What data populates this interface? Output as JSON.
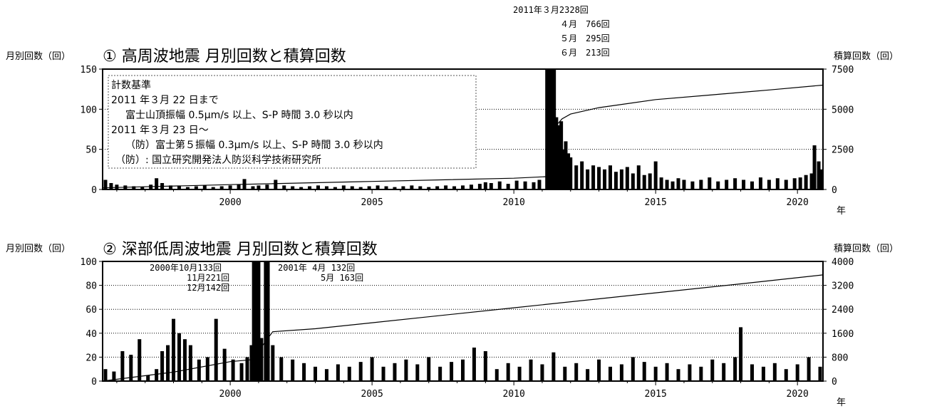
{
  "chart_data": [
    {
      "type": "bar",
      "title": "① 高周波地震 月別回数と積算回数",
      "ylabel_left": "月別回数（回）",
      "ylabel_right": "積算回数（回）",
      "xlabel": "年",
      "ylim": [
        0,
        150
      ],
      "ylim_right": [
        0,
        7500
      ],
      "yticks": [
        "0",
        "50",
        "100",
        "150"
      ],
      "yticks_right": [
        "0",
        "2500",
        "5000",
        "7500"
      ],
      "xticks": [
        "2000",
        "2005",
        "2010",
        "2015",
        "2020"
      ],
      "xrange": [
        1995.5,
        2020.9
      ],
      "grid": "horizontal dotted",
      "series": [
        {
          "kind": "monthly_bars",
          "x": [
            1995.6,
            1995.8,
            1996.0,
            1996.3,
            1996.6,
            1996.9,
            1997.2,
            1997.4,
            1997.6,
            1997.9,
            1998.2,
            1998.5,
            1998.8,
            1999.1,
            1999.4,
            1999.7,
            2000.0,
            2000.3,
            2000.5,
            2000.8,
            2001.0,
            2001.3,
            2001.6,
            2001.9,
            2002.2,
            2002.5,
            2002.8,
            2003.1,
            2003.4,
            2003.7,
            2004.0,
            2004.3,
            2004.6,
            2004.9,
            2005.2,
            2005.5,
            2005.8,
            2006.1,
            2006.4,
            2006.7,
            2007.0,
            2007.3,
            2007.6,
            2007.9,
            2008.2,
            2008.5,
            2008.8,
            2009.0,
            2009.2,
            2009.5,
            2009.8,
            2010.1,
            2010.4,
            2010.7,
            2010.9,
            2011.17,
            2011.25,
            2011.33,
            2011.42,
            2011.5,
            2011.58,
            2011.67,
            2011.75,
            2011.83,
            2011.92,
            2012.0,
            2012.2,
            2012.4,
            2012.6,
            2012.8,
            2013.0,
            2013.2,
            2013.4,
            2013.6,
            2013.8,
            2014.0,
            2014.2,
            2014.4,
            2014.6,
            2014.8,
            2015.0,
            2015.2,
            2015.4,
            2015.6,
            2015.8,
            2016.0,
            2016.3,
            2016.6,
            2016.9,
            2017.2,
            2017.5,
            2017.8,
            2018.1,
            2018.4,
            2018.7,
            2019.0,
            2019.3,
            2019.6,
            2019.9,
            2020.1,
            2020.3,
            2020.5,
            2020.6,
            2020.75,
            2020.85
          ],
          "values": [
            12,
            8,
            6,
            5,
            4,
            3,
            6,
            14,
            8,
            5,
            4,
            3,
            4,
            5,
            3,
            4,
            5,
            6,
            13,
            4,
            5,
            6,
            12,
            5,
            4,
            3,
            4,
            5,
            4,
            3,
            5,
            4,
            3,
            4,
            5,
            4,
            3,
            4,
            5,
            4,
            3,
            4,
            5,
            4,
            5,
            6,
            7,
            9,
            8,
            10,
            7,
            11,
            10,
            9,
            12,
            2328,
            766,
            295,
            213,
            90,
            80,
            85,
            50,
            60,
            45,
            40,
            30,
            35,
            25,
            30,
            28,
            25,
            30,
            22,
            25,
            28,
            20,
            30,
            18,
            20,
            35,
            15,
            12,
            10,
            14,
            12,
            10,
            12,
            15,
            10,
            12,
            14,
            12,
            10,
            15,
            12,
            14,
            12,
            14,
            15,
            18,
            20,
            55,
            35,
            25
          ]
        },
        {
          "kind": "cumulative_line",
          "x": [
            1995.5,
            2000,
            2005,
            2010,
            2011.15,
            2011.3,
            2011.5,
            2011.7,
            2012,
            2013,
            2015,
            2017,
            2019,
            2020.9
          ],
          "values": [
            100,
            300,
            500,
            700,
            800,
            3200,
            4000,
            4400,
            4700,
            5100,
            5600,
            5900,
            6200,
            6500
          ]
        }
      ],
      "annotations": [
        "2011年３月2328回",
        "４月　766回",
        "５月　295回",
        "６月　213回"
      ],
      "legend_box": [
        "計数基準",
        "2011 年３月 22 日まで",
        "富士山頂振幅 0.5μm/s 以上、S-P 時間 3.0 秒以内",
        "2011 年３月 23 日～",
        "（防）富士第５振幅 0.3μm/s 以上、S-P 時間 3.0 秒以内",
        "（防）: 国立研究開発法人防災科学技術研究所"
      ]
    },
    {
      "type": "bar",
      "title": "② 深部低周波地震 月別回数と積算回数",
      "ylabel_left": "月別回数（回）",
      "ylabel_right": "積算回数（回）",
      "xlabel": "年",
      "ylim": [
        0,
        100
      ],
      "ylim_right": [
        0,
        4000
      ],
      "yticks": [
        "0",
        "20",
        "40",
        "60",
        "80",
        "100"
      ],
      "yticks_right": [
        "0",
        "800",
        "1600",
        "2400",
        "3200",
        "4000"
      ],
      "xticks": [
        "2000",
        "2005",
        "2010",
        "2015",
        "2020"
      ],
      "xrange": [
        1995.5,
        2020.9
      ],
      "grid": "horizontal dotted",
      "series": [
        {
          "kind": "monthly_bars",
          "x": [
            1995.6,
            1995.9,
            1996.2,
            1996.5,
            1996.8,
            1997.1,
            1997.4,
            1997.6,
            1997.8,
            1998.0,
            1998.2,
            1998.4,
            1998.6,
            1998.9,
            1999.2,
            1999.5,
            1999.8,
            2000.1,
            2000.4,
            2000.6,
            2000.75,
            2000.83,
            2000.92,
            2001.0,
            2001.1,
            2001.25,
            2001.33,
            2001.5,
            2001.8,
            2002.2,
            2002.6,
            2003.0,
            2003.4,
            2003.8,
            2004.2,
            2004.6,
            2005.0,
            2005.4,
            2005.8,
            2006.2,
            2006.6,
            2007.0,
            2007.4,
            2007.8,
            2008.2,
            2008.6,
            2009.0,
            2009.4,
            2009.8,
            2010.2,
            2010.6,
            2011.0,
            2011.4,
            2011.8,
            2012.2,
            2012.6,
            2013.0,
            2013.4,
            2013.8,
            2014.2,
            2014.6,
            2015.0,
            2015.4,
            2015.8,
            2016.2,
            2016.6,
            2017.0,
            2017.4,
            2017.8,
            2018.0,
            2018.4,
            2018.8,
            2019.2,
            2019.6,
            2020.0,
            2020.4,
            2020.8
          ],
          "values": [
            10,
            8,
            25,
            22,
            35,
            5,
            10,
            25,
            30,
            52,
            40,
            35,
            30,
            18,
            20,
            52,
            27,
            18,
            15,
            20,
            30,
            133,
            221,
            142,
            36,
            132,
            163,
            30,
            20,
            18,
            15,
            12,
            10,
            14,
            12,
            16,
            20,
            12,
            15,
            18,
            14,
            20,
            12,
            16,
            18,
            28,
            25,
            10,
            15,
            12,
            18,
            14,
            24,
            12,
            15,
            10,
            18,
            12,
            14,
            20,
            16,
            12,
            15,
            10,
            14,
            12,
            18,
            15,
            20,
            45,
            14,
            12,
            15,
            10,
            14,
            20,
            12
          ]
        },
        {
          "kind": "cumulative_line",
          "x": [
            1995.5,
            1998,
            2000,
            2000.8,
            2001.0,
            2001.3,
            2001.5,
            2003,
            2005,
            2007,
            2010,
            2013,
            2015,
            2018,
            2020.9
          ],
          "values": [
            0,
            300,
            650,
            720,
            1000,
            1400,
            1650,
            1750,
            1950,
            2150,
            2450,
            2750,
            2950,
            3250,
            3550
          ]
        }
      ],
      "annotations": [
        "2000年10月133回",
        "11月221回",
        "12月142回",
        "2001年 4月 132回",
        "5月 163回"
      ]
    }
  ],
  "style": {
    "bar_color": "#000000",
    "line_color": "#000000",
    "background": "#ffffff"
  }
}
